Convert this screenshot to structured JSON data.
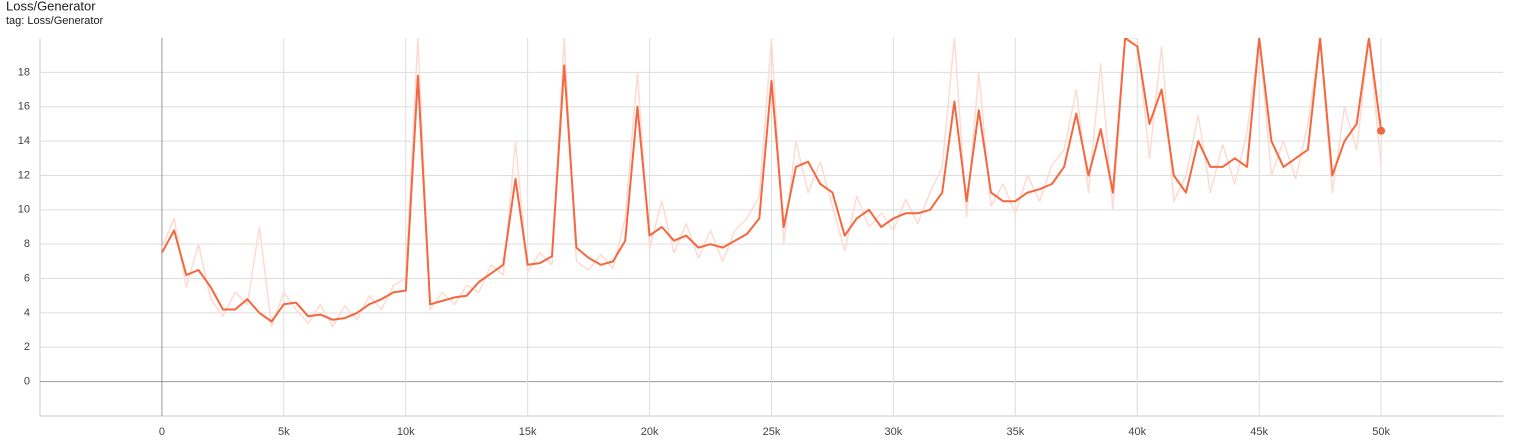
{
  "chart_data": {
    "type": "line",
    "title": "Loss/Generator",
    "subtitle": "tag: Loss/Generator",
    "x": [
      0,
      500,
      1000,
      1500,
      2000,
      2500,
      3000,
      3500,
      4000,
      4500,
      5000,
      5500,
      6000,
      6500,
      7000,
      7500,
      8000,
      8500,
      9000,
      9500,
      10000,
      10500,
      11000,
      11500,
      12000,
      12500,
      13000,
      13500,
      14000,
      14500,
      15000,
      15500,
      16000,
      16500,
      17000,
      17500,
      18000,
      18500,
      19000,
      19500,
      20000,
      20500,
      21000,
      21500,
      22000,
      22500,
      23000,
      23500,
      24000,
      24500,
      25000,
      25500,
      26000,
      26500,
      27000,
      27500,
      28000,
      28500,
      29000,
      29500,
      30000,
      30500,
      31000,
      31500,
      32000,
      32500,
      33000,
      33500,
      34000,
      34500,
      35000,
      35500,
      36000,
      36500,
      37000,
      37500,
      38000,
      38500,
      39000,
      39500,
      40000,
      40500,
      41000,
      41500,
      42000,
      42500,
      43000,
      43500,
      44000,
      44500,
      45000,
      45500,
      46000,
      46500,
      47000,
      47500,
      48000,
      48500,
      49000,
      49500,
      50000
    ],
    "series": [
      {
        "color": "#fcdcd2",
        "values": [
          7.8,
          9.5,
          5.5,
          8.0,
          4.8,
          3.8,
          5.2,
          4.5,
          9.0,
          3.2,
          5.2,
          4.2,
          3.4,
          4.5,
          3.2,
          4.4,
          3.6,
          5.0,
          4.2,
          5.6,
          6.0,
          20.0,
          4.2,
          5.2,
          4.5,
          5.6,
          5.2,
          6.8,
          6.2,
          14.0,
          6.4,
          7.5,
          6.8,
          20.0,
          7.0,
          6.5,
          7.4,
          6.6,
          9.5,
          18.0,
          7.8,
          10.5,
          7.5,
          9.2,
          7.2,
          8.8,
          7.0,
          8.8,
          9.5,
          10.8,
          20.0,
          8.0,
          14.0,
          11.0,
          12.8,
          10.2,
          7.6,
          10.8,
          9.0,
          9.8,
          8.8,
          10.6,
          9.2,
          11.0,
          12.5,
          20.0,
          9.6,
          18.0,
          10.2,
          11.5,
          9.8,
          12.0,
          10.5,
          12.6,
          13.5,
          17.0,
          11.0,
          18.5,
          10.0,
          20.0,
          20.0,
          13.0,
          19.5,
          10.5,
          12.0,
          15.5,
          11.0,
          13.8,
          11.5,
          14.5,
          20.0,
          12.0,
          14.0,
          11.8,
          15.0,
          20.0,
          11.0,
          16.0,
          13.5,
          20.0,
          12.5
        ]
      },
      {
        "color": "#f4683f",
        "values": [
          7.5,
          8.8,
          6.2,
          6.5,
          5.5,
          4.2,
          4.2,
          4.8,
          4.0,
          3.5,
          4.5,
          4.6,
          3.8,
          3.9,
          3.6,
          3.7,
          4.0,
          4.5,
          4.8,
          5.2,
          5.3,
          17.8,
          4.5,
          4.7,
          4.9,
          5.0,
          5.8,
          6.3,
          6.8,
          11.8,
          6.8,
          6.9,
          7.3,
          18.4,
          7.8,
          7.2,
          6.8,
          7.0,
          8.2,
          16.0,
          8.5,
          9.0,
          8.2,
          8.5,
          7.8,
          8.0,
          7.8,
          8.2,
          8.6,
          9.5,
          17.5,
          9.0,
          12.5,
          12.8,
          11.5,
          11.0,
          8.5,
          9.5,
          10.0,
          9.0,
          9.5,
          9.8,
          9.8,
          10.0,
          11.0,
          16.3,
          10.5,
          15.8,
          11.0,
          10.5,
          10.5,
          11.0,
          11.2,
          11.5,
          12.5,
          15.6,
          12.0,
          14.7,
          11.0,
          20.0,
          19.5,
          15.0,
          17.0,
          12.0,
          11.0,
          14.0,
          12.5,
          12.5,
          13.0,
          12.5,
          20.0,
          14.0,
          12.5,
          13.0,
          13.5,
          20.0,
          12.0,
          14.0,
          15.0,
          20.0,
          14.6
        ]
      }
    ],
    "xlim": [
      -5000,
      55000
    ],
    "xticks": [
      0,
      {
        "value": 5000,
        "label": "5k"
      },
      {
        "value": 10000,
        "label": "10k"
      },
      {
        "value": 15000,
        "label": "15k"
      },
      {
        "value": 20000,
        "label": "20k"
      },
      {
        "value": 25000,
        "label": "25k"
      },
      {
        "value": 30000,
        "label": "30k"
      },
      {
        "value": 35000,
        "label": "35k"
      },
      {
        "value": 40000,
        "label": "40k"
      },
      {
        "value": 45000,
        "label": "45k"
      },
      {
        "value": 50000,
        "label": "50k"
      }
    ],
    "ylim": [
      -2,
      20
    ],
    "yticks": [
      0,
      2,
      4,
      6,
      8,
      10,
      12,
      14,
      16,
      18
    ],
    "grid": true
  }
}
